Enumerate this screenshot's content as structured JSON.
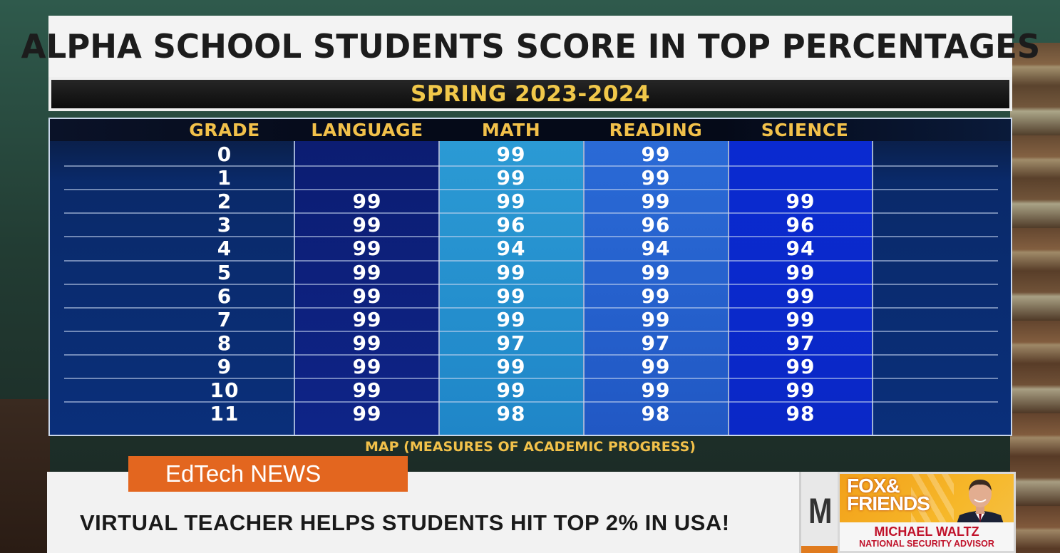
{
  "title": "ALPHA SCHOOL STUDENTS SCORE IN TOP PERCENTAGES",
  "subtitle": "SPRING 2023-2024",
  "table": {
    "headers": [
      "GRADE",
      "LANGUAGE",
      "MATH",
      "READING",
      "SCIENCE"
    ],
    "rows": [
      [
        "0",
        "",
        "99",
        "99",
        ""
      ],
      [
        "1",
        "",
        "99",
        "99",
        ""
      ],
      [
        "2",
        "99",
        "99",
        "99",
        "99"
      ],
      [
        "3",
        "99",
        "96",
        "96",
        "96"
      ],
      [
        "4",
        "99",
        "94",
        "94",
        "94"
      ],
      [
        "5",
        "99",
        "99",
        "99",
        "99"
      ],
      [
        "6",
        "99",
        "99",
        "99",
        "99"
      ],
      [
        "7",
        "99",
        "99",
        "99",
        "99"
      ],
      [
        "8",
        "99",
        "97",
        "97",
        "97"
      ],
      [
        "9",
        "99",
        "99",
        "99",
        "99"
      ],
      [
        "10",
        "99",
        "99",
        "99",
        "99"
      ],
      [
        "11",
        "99",
        "98",
        "98",
        "98"
      ]
    ]
  },
  "caption": "MAP (MEASURES OF ACADEMIC PROGRESS)",
  "ticker": {
    "badge": "EdTech NEWS",
    "headline": "VIRTUAL TEACHER HELPS STUDENTS HIT TOP 2% IN USA!",
    "partial_letter": "M"
  },
  "show": {
    "logo_line1": "FOX&",
    "logo_line2": "FRIENDS",
    "guest_name": "MICHAEL WALTZ",
    "guest_role": "NATIONAL SECURITY ADVISOR"
  },
  "colors": {
    "header_gold": "#f2c14a",
    "badge_orange": "#e3661f",
    "name_red": "#c0122a"
  }
}
